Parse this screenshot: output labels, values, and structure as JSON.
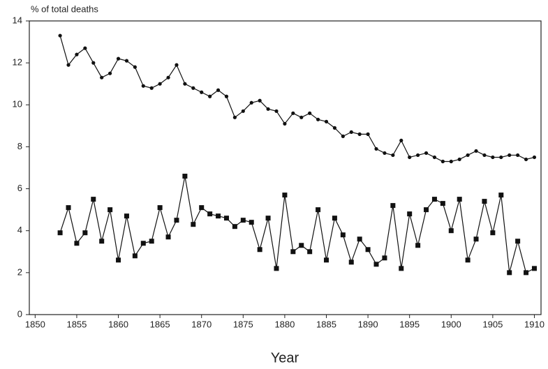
{
  "chart_data": {
    "type": "line",
    "y_label": "% of total deaths",
    "x_label": "Year",
    "x": [
      1853,
      1854,
      1855,
      1856,
      1857,
      1858,
      1859,
      1860,
      1861,
      1862,
      1863,
      1864,
      1865,
      1866,
      1867,
      1868,
      1869,
      1870,
      1871,
      1872,
      1873,
      1874,
      1875,
      1876,
      1877,
      1878,
      1879,
      1880,
      1881,
      1882,
      1883,
      1884,
      1885,
      1886,
      1887,
      1888,
      1889,
      1890,
      1891,
      1892,
      1893,
      1894,
      1895,
      1896,
      1897,
      1898,
      1899,
      1900,
      1901,
      1902,
      1903,
      1904,
      1905,
      1906,
      1907,
      1908,
      1909,
      1910
    ],
    "series": [
      {
        "color": "#111111",
        "marker": "circle",
        "values": [
          13.3,
          11.9,
          12.4,
          12.7,
          12.0,
          11.3,
          11.5,
          12.2,
          12.1,
          11.8,
          10.9,
          10.8,
          11.0,
          11.3,
          11.9,
          11.0,
          10.8,
          10.6,
          10.4,
          10.7,
          10.4,
          9.4,
          9.7,
          10.1,
          10.2,
          9.8,
          9.7,
          9.1,
          9.6,
          9.4,
          9.6,
          9.3,
          9.2,
          8.9,
          8.5,
          8.7,
          8.6,
          8.6,
          7.9,
          7.7,
          7.6,
          8.3,
          7.5,
          7.6,
          7.7,
          7.5,
          7.3,
          7.3,
          7.4,
          7.6,
          7.8,
          7.6,
          7.5,
          7.5,
          7.6,
          7.6,
          7.4,
          7.5
        ]
      },
      {
        "color": "#111111",
        "marker": "square",
        "values": [
          3.9,
          5.1,
          3.4,
          3.9,
          5.5,
          3.5,
          5.0,
          2.6,
          4.7,
          2.8,
          3.4,
          3.5,
          5.1,
          3.7,
          4.5,
          6.6,
          4.3,
          5.1,
          4.8,
          4.7,
          4.6,
          4.2,
          4.5,
          4.4,
          3.1,
          4.6,
          2.2,
          5.7,
          3.0,
          3.3,
          3.0,
          5.0,
          2.6,
          4.6,
          3.8,
          2.5,
          3.6,
          3.1,
          2.4,
          2.7,
          5.2,
          2.2,
          4.8,
          3.3,
          5.0,
          5.5,
          5.3,
          4.0,
          5.5,
          2.6,
          3.6,
          5.4,
          3.9,
          5.7,
          2.0,
          3.5,
          2.0,
          2.2
        ]
      }
    ],
    "xlim": [
      1849.3,
      1910.8
    ],
    "xticks": [
      1850,
      1855,
      1860,
      1865,
      1870,
      1875,
      1880,
      1885,
      1890,
      1895,
      1900,
      1905,
      1910
    ],
    "ylim": [
      0,
      14
    ],
    "yticks": [
      0,
      2,
      4,
      6,
      8,
      10,
      12,
      14
    ],
    "grid": false
  }
}
